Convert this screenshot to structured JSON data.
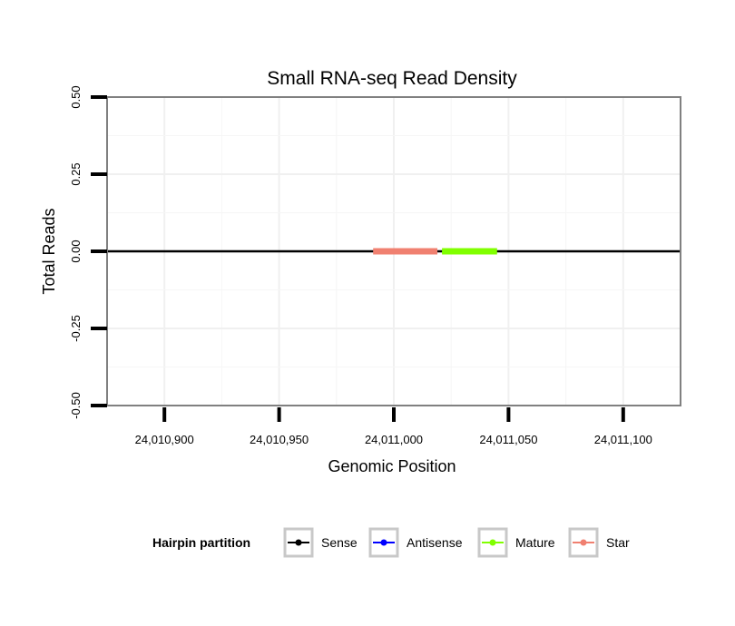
{
  "chart_data": {
    "type": "line",
    "title": "Small RNA-seq Read Density",
    "xlabel": "Genomic Position",
    "ylabel": "Total Reads",
    "xlim": [
      24010875,
      24011125
    ],
    "ylim": [
      -0.5,
      0.5
    ],
    "x_ticks": [
      24010900,
      24010950,
      24011000,
      24011050,
      24011100
    ],
    "x_tick_labels": [
      "24,010,900",
      "24,010,950",
      "24,011,000",
      "24,011,050",
      "24,011,100"
    ],
    "y_ticks": [
      -0.5,
      -0.25,
      0,
      0.25,
      0.5
    ],
    "y_tick_labels": [
      "-0.50",
      "-0.25",
      "0.00",
      "0.25",
      "0.50"
    ],
    "grid": true,
    "series": [
      {
        "name": "Sense",
        "color": "#000000",
        "x": [
          24010875,
          24011125
        ],
        "y": [
          0,
          0
        ]
      },
      {
        "name": "Antisense",
        "color": "#0000ff",
        "x": [],
        "y": []
      },
      {
        "name": "Mature",
        "color": "#80ff00",
        "x": [
          24011021,
          24011045
        ],
        "y": [
          0,
          0
        ]
      },
      {
        "name": "Star",
        "color": "#f08070",
        "x": [
          24010991,
          24011019
        ],
        "y": [
          0,
          0
        ]
      }
    ],
    "legend": {
      "title": "Hairpin partition",
      "position": "bottom",
      "entries": [
        "Sense",
        "Antisense",
        "Mature",
        "Star"
      ]
    }
  }
}
